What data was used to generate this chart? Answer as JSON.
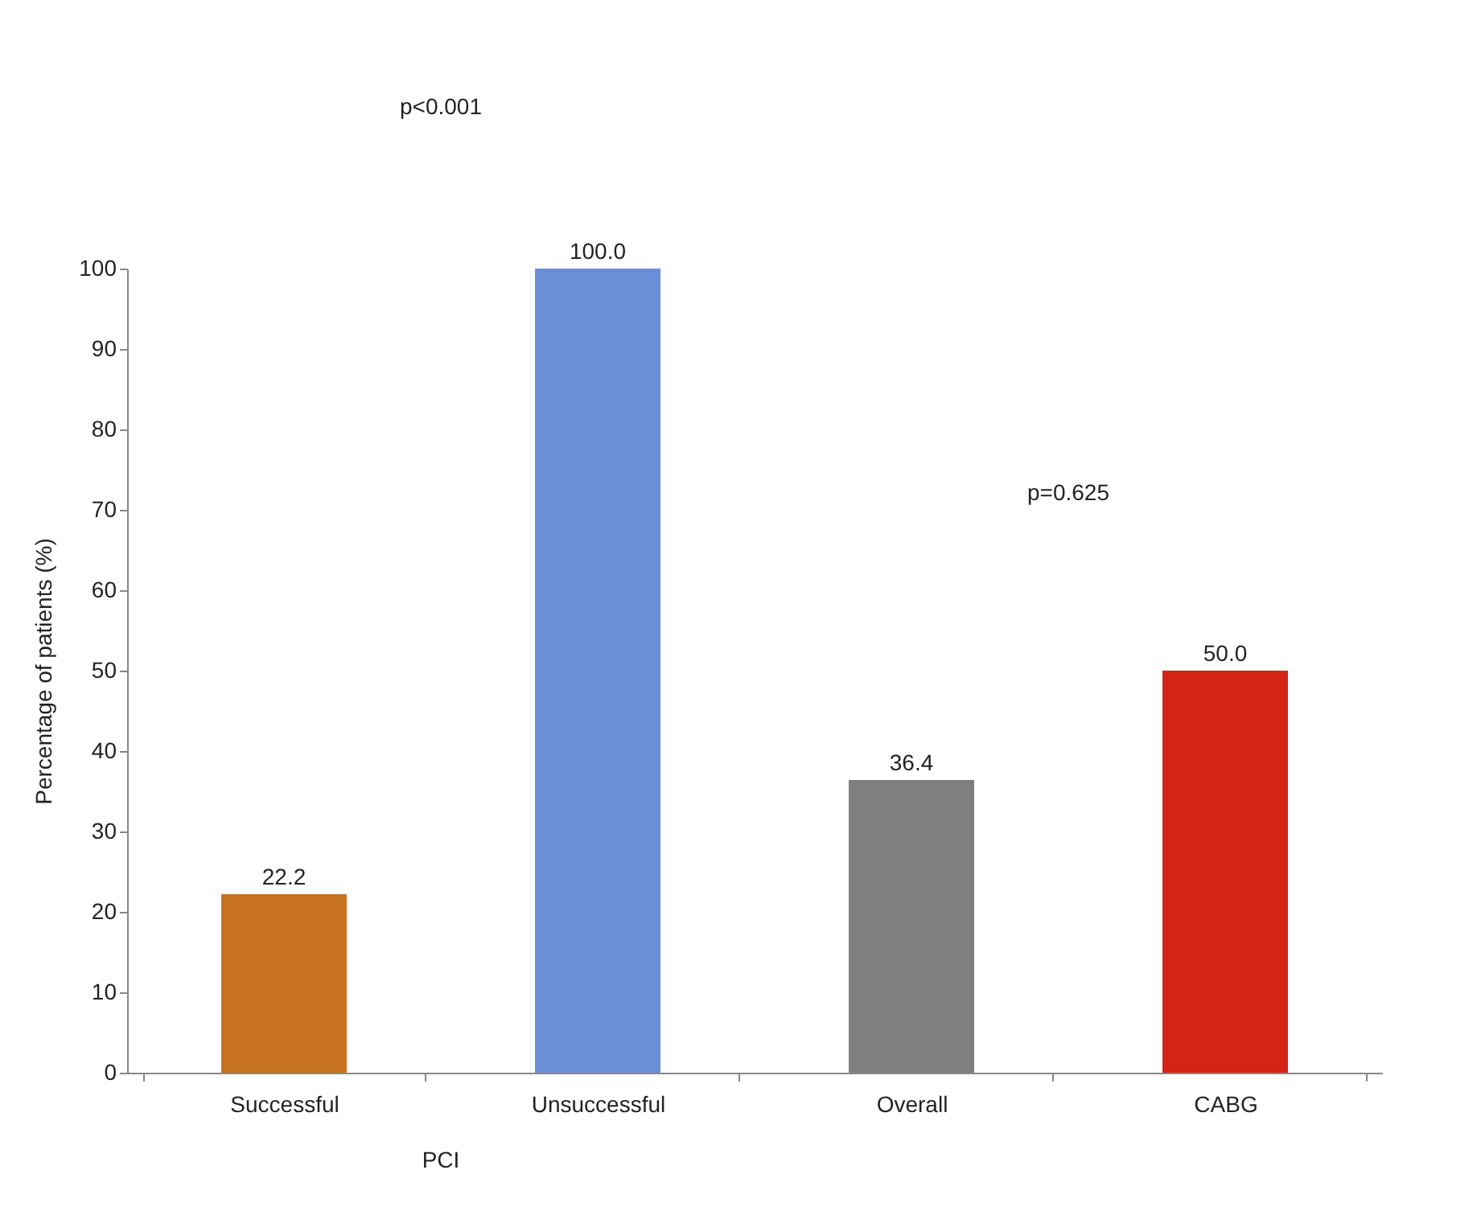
{
  "chart_data": {
    "type": "bar",
    "categories": [
      "Successful",
      "Unsuccessful",
      "Overall",
      "CABG"
    ],
    "values": [
      22.2,
      100.0,
      36.4,
      50.0
    ],
    "colors": [
      "#c8731f",
      "#6a8fd8",
      "#7f7f7f",
      "#d42415"
    ],
    "ylabel": "Percentage of patients (%)",
    "ylim": [
      0,
      100
    ],
    "yticks": [
      0,
      10,
      20,
      30,
      40,
      50,
      60,
      70,
      80,
      90,
      100
    ],
    "value_labels": [
      "22.2",
      "100.0",
      "36.4",
      "50.0"
    ],
    "grid": false,
    "annotations": [
      "p<0.001",
      "p=0.625",
      "PCI"
    ]
  }
}
